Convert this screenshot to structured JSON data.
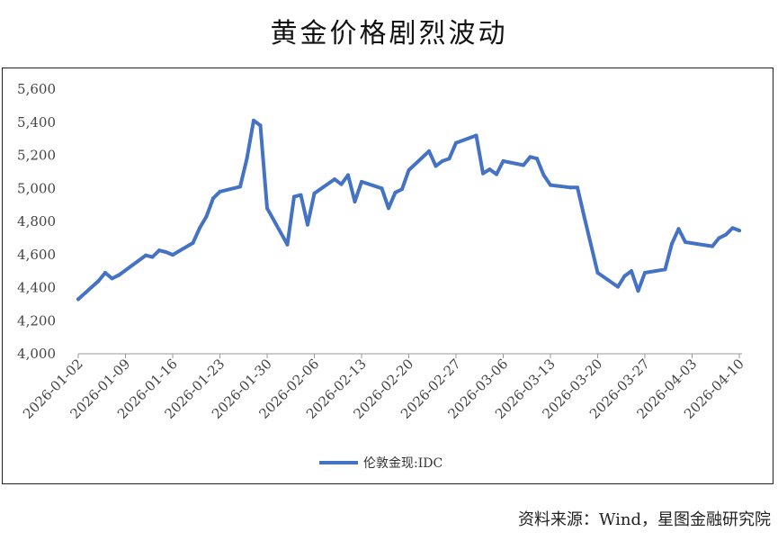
{
  "title": "黄金价格剧烈波动",
  "source": "资料来源：Wind，星图金融研究院",
  "colors": {
    "line": "#4472C4",
    "axis": "#999999",
    "text": "#444444"
  },
  "chart_data": {
    "type": "line",
    "title": "黄金价格剧烈波动",
    "legend_position": "bottom",
    "grid": false,
    "ylim": [
      4000,
      5600
    ],
    "yticks": [
      4000,
      4200,
      4400,
      4600,
      4800,
      5000,
      5200,
      5400,
      5600
    ],
    "ytick_labels": [
      "4,000",
      "4,200",
      "4,400",
      "4,600",
      "4,800",
      "5,000",
      "5,200",
      "5,400",
      "5,600"
    ],
    "xlim": [
      "2026-01-02",
      "2026-04-10"
    ],
    "xtick_labels": [
      "2026-01-02",
      "2026-01-09",
      "2026-01-16",
      "2026-01-23",
      "2026-01-30",
      "2026-02-06",
      "2026-02-13",
      "2026-02-20",
      "2026-02-27",
      "2026-03-06",
      "2026-03-13",
      "2026-03-20",
      "2026-03-27",
      "2026-04-03",
      "2026-04-10"
    ],
    "series": [
      {
        "name": "伦敦金现:IDC",
        "points": [
          [
            "2026-01-02",
            4330
          ],
          [
            "2026-01-05",
            4440
          ],
          [
            "2026-01-06",
            4490
          ],
          [
            "2026-01-07",
            4455
          ],
          [
            "2026-01-08",
            4475
          ],
          [
            "2026-01-12",
            4595
          ],
          [
            "2026-01-13",
            4585
          ],
          [
            "2026-01-14",
            4625
          ],
          [
            "2026-01-15",
            4615
          ],
          [
            "2026-01-16",
            4598
          ],
          [
            "2026-01-19",
            4670
          ],
          [
            "2026-01-20",
            4760
          ],
          [
            "2026-01-21",
            4830
          ],
          [
            "2026-01-22",
            4940
          ],
          [
            "2026-01-23",
            4980
          ],
          [
            "2026-01-26",
            5010
          ],
          [
            "2026-01-27",
            5180
          ],
          [
            "2026-01-28",
            5410
          ],
          [
            "2026-01-29",
            5380
          ],
          [
            "2026-01-30",
            4880
          ],
          [
            "2026-02-02",
            4660
          ],
          [
            "2026-02-03",
            4950
          ],
          [
            "2026-02-04",
            4960
          ],
          [
            "2026-02-05",
            4780
          ],
          [
            "2026-02-06",
            4970
          ],
          [
            "2026-02-09",
            5055
          ],
          [
            "2026-02-10",
            5025
          ],
          [
            "2026-02-11",
            5080
          ],
          [
            "2026-02-12",
            4920
          ],
          [
            "2026-02-13",
            5040
          ],
          [
            "2026-02-16",
            5000
          ],
          [
            "2026-02-17",
            4880
          ],
          [
            "2026-02-18",
            4975
          ],
          [
            "2026-02-19",
            4995
          ],
          [
            "2026-02-20",
            5110
          ],
          [
            "2026-02-23",
            5225
          ],
          [
            "2026-02-24",
            5135
          ],
          [
            "2026-02-25",
            5165
          ],
          [
            "2026-02-26",
            5180
          ],
          [
            "2026-02-27",
            5275
          ],
          [
            "2026-03-02",
            5320
          ],
          [
            "2026-03-03",
            5090
          ],
          [
            "2026-03-04",
            5115
          ],
          [
            "2026-03-05",
            5085
          ],
          [
            "2026-03-06",
            5165
          ],
          [
            "2026-03-09",
            5140
          ],
          [
            "2026-03-10",
            5190
          ],
          [
            "2026-03-11",
            5180
          ],
          [
            "2026-03-12",
            5080
          ],
          [
            "2026-03-13",
            5020
          ],
          [
            "2026-03-16",
            5005
          ],
          [
            "2026-03-17",
            5005
          ],
          [
            "2026-03-18",
            4830
          ],
          [
            "2026-03-20",
            4490
          ],
          [
            "2026-03-23",
            4405
          ],
          [
            "2026-03-24",
            4470
          ],
          [
            "2026-03-25",
            4500
          ],
          [
            "2026-03-26",
            4380
          ],
          [
            "2026-03-27",
            4490
          ],
          [
            "2026-03-30",
            4510
          ],
          [
            "2026-03-31",
            4665
          ],
          [
            "2026-04-01",
            4755
          ],
          [
            "2026-04-02",
            4675
          ],
          [
            "2026-04-06",
            4650
          ],
          [
            "2026-04-07",
            4700
          ],
          [
            "2026-04-08",
            4720
          ],
          [
            "2026-04-09",
            4760
          ],
          [
            "2026-04-10",
            4745
          ]
        ]
      }
    ]
  }
}
